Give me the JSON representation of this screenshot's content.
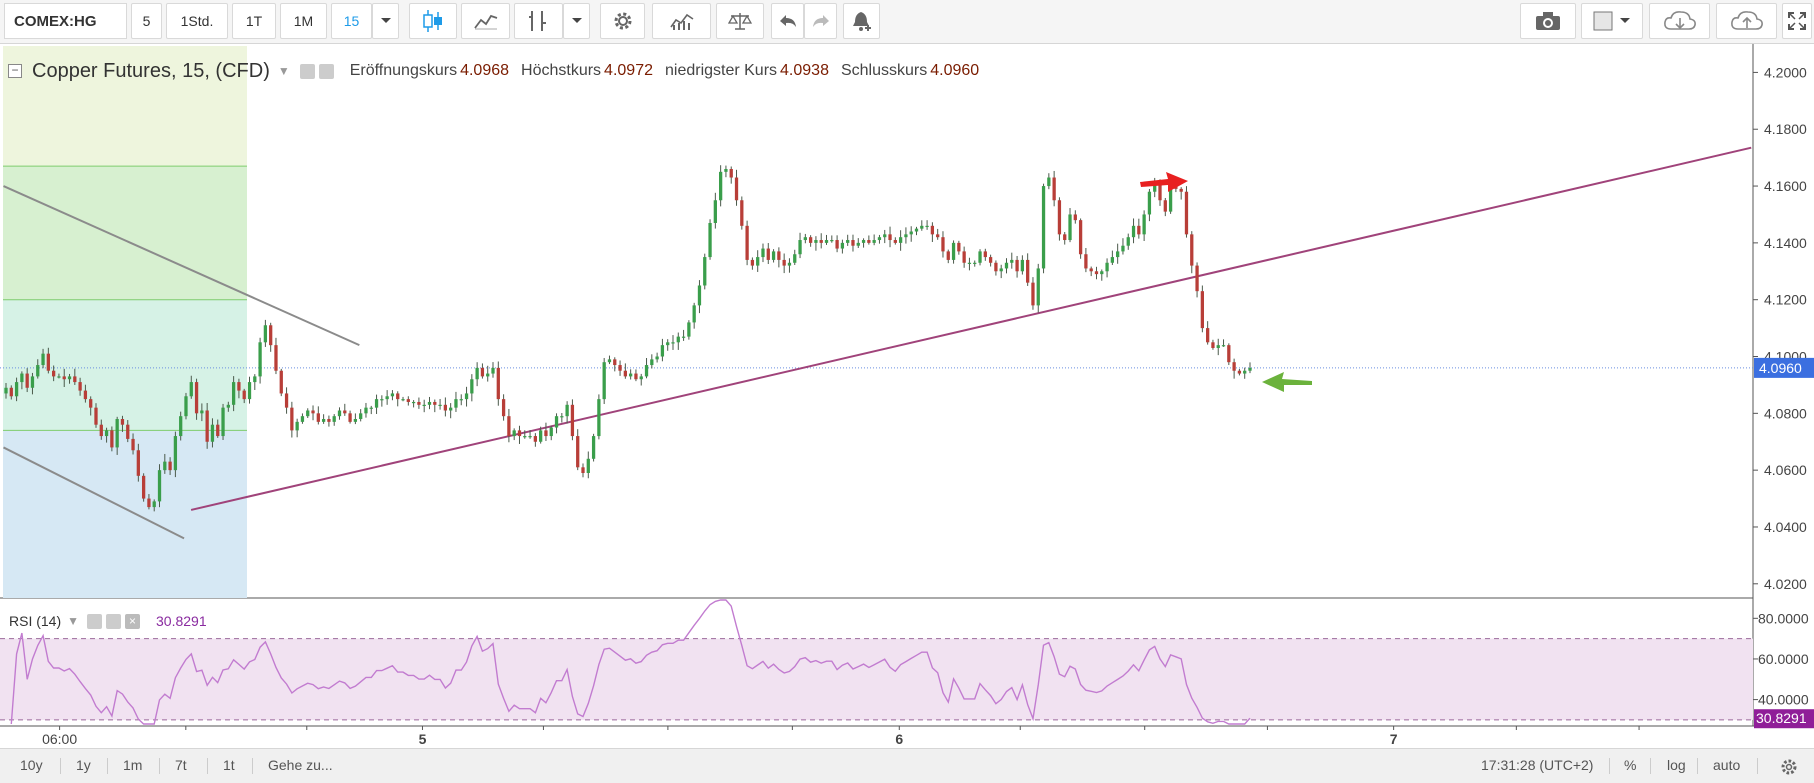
{
  "toolbar": {
    "symbol": "COMEX:HG",
    "intervals": [
      "5",
      "1Std.",
      "1T",
      "1M",
      "15"
    ],
    "active_interval": "15",
    "icons": [
      "candles-icon",
      "indicators-icon",
      "compare-icon",
      "settings-icon",
      "templates-icon",
      "scale-icon",
      "undo-icon",
      "redo-icon",
      "alert-icon",
      "camera-icon",
      "color-icon",
      "cloud-download-icon",
      "cloud-upload-icon",
      "fullscreen-icon"
    ]
  },
  "legend": {
    "title": "Copper Futures, 15, (CFD)",
    "open_label": "Eröffnungskurs",
    "open": "4.0968",
    "high_label": "Höchstkurs",
    "high": "4.0972",
    "low_label": "niedrigster Kurs",
    "low": "4.0938",
    "close_label": "Schlusskurs",
    "close": "4.0960"
  },
  "rsi": {
    "title": "RSI (14)",
    "value": "30.8291",
    "levels": [
      30,
      70
    ]
  },
  "bottom": {
    "ranges": [
      "10y",
      "1y",
      "1m",
      "7t",
      "1t"
    ],
    "goto": "Gehe zu...",
    "clock": "17:31:28 (UTC+2)",
    "percent": "%",
    "log": "log",
    "auto": "auto"
  },
  "colors": {
    "up": "#3a9e4b",
    "down": "#b83e38",
    "trendline": "#a0437a",
    "channel": "#8b8b8b",
    "last_price_bg": "#3b6fe0",
    "rsi_line": "#c27cd0",
    "rsi_band": "#f1e2f1",
    "rsi_last_bg": "#8f1e98",
    "arrow_red": "#e82020",
    "arrow_green": "#6bb23c"
  },
  "chart_data": {
    "type": "candlestick",
    "title": "Copper Futures, 15, (CFD)",
    "price_axis": {
      "ticks": [
        "4.2000",
        "4.1800",
        "4.1600",
        "4.1400",
        "4.1200",
        "4.1000",
        "4.0800",
        "4.0600",
        "4.0400",
        "4.0200"
      ],
      "ylim": [
        4.015,
        4.21
      ],
      "last_price": "4.0960"
    },
    "rsi_axis": {
      "ticks": [
        "80.0000",
        "60.0000",
        "40.0000"
      ],
      "ylim": [
        27,
        90
      ],
      "last": "30.8291"
    },
    "time_axis": {
      "labels": [
        {
          "label": "06:00",
          "x_frac": 0.034
        },
        {
          "label": "5",
          "x_frac": 0.241
        },
        {
          "label": "6",
          "x_frac": 0.513
        },
        {
          "label": "7",
          "x_frac": 0.795
        }
      ],
      "tick_fracs": [
        0.034,
        0.106,
        0.175,
        0.241,
        0.31,
        0.381,
        0.452,
        0.513,
        0.582,
        0.653,
        0.723,
        0.795,
        0.865,
        0.935
      ]
    },
    "fib_levels": [
      4.212,
      4.167,
      4.12,
      4.074
    ],
    "trendline": {
      "x_frac": [
        0.109,
        0.999
      ],
      "y": [
        4.046,
        4.1735
      ]
    },
    "channel_upper": {
      "x_frac": [
        0.002,
        0.205
      ],
      "y": [
        4.16,
        4.104
      ]
    },
    "channel_lower": {
      "x_frac": [
        0.002,
        0.105
      ],
      "y": [
        4.068,
        4.036
      ]
    },
    "closes": [
      4.089,
      4.086,
      4.091,
      4.094,
      4.089,
      4.093,
      4.097,
      4.101,
      4.095,
      4.093,
      4.093,
      4.092,
      4.093,
      4.091,
      4.088,
      4.085,
      4.082,
      4.076,
      4.072,
      4.074,
      4.068,
      4.078,
      4.076,
      4.071,
      4.067,
      4.058,
      4.05,
      4.047,
      4.049,
      4.06,
      4.063,
      4.06,
      4.072,
      4.079,
      4.086,
      4.091,
      4.08,
      4.081,
      4.07,
      4.076,
      4.072,
      4.082,
      4.083,
      4.091,
      4.088,
      4.085,
      4.091,
      4.093,
      4.105,
      4.111,
      4.104,
      4.095,
      4.087,
      4.082,
      4.074,
      4.077,
      4.079,
      4.081,
      4.08,
      4.077,
      4.078,
      4.077,
      4.079,
      4.081,
      4.08,
      4.077,
      4.078,
      4.08,
      4.082,
      4.082,
      4.085,
      4.085,
      4.086,
      4.087,
      4.085,
      4.085,
      4.084,
      4.084,
      4.083,
      4.083,
      4.084,
      4.083,
      4.083,
      4.081,
      4.082,
      4.085,
      4.085,
      4.087,
      4.092,
      4.096,
      4.093,
      4.094,
      4.096,
      4.085,
      4.079,
      4.072,
      4.074,
      4.072,
      4.072,
      4.072,
      4.07,
      4.074,
      4.072,
      4.075,
      4.079,
      4.079,
      4.083,
      4.072,
      4.061,
      4.059,
      4.064,
      4.072,
      4.085,
      4.098,
      4.099,
      4.097,
      4.095,
      4.093,
      4.094,
      4.092,
      4.093,
      4.097,
      4.099,
      4.1,
      4.104,
      4.105,
      4.105,
      4.107,
      4.107,
      4.112,
      4.118,
      4.125,
      4.135,
      4.147,
      4.155,
      4.165,
      4.166,
      4.163,
      4.155,
      4.146,
      4.134,
      4.132,
      4.135,
      4.138,
      4.134,
      4.137,
      4.134,
      4.132,
      4.133,
      4.136,
      4.141,
      4.142,
      4.14,
      4.141,
      4.14,
      4.141,
      4.141,
      4.138,
      4.14,
      4.141,
      4.139,
      4.14,
      4.141,
      4.14,
      4.141,
      4.142,
      4.143,
      4.141,
      4.14,
      4.142,
      4.143,
      4.144,
      4.145,
      4.146,
      4.146,
      4.143,
      4.142,
      4.137,
      4.134,
      4.14,
      4.137,
      4.133,
      4.133,
      4.133,
      4.137,
      4.135,
      4.133,
      4.13,
      4.131,
      4.133,
      4.134,
      4.13,
      4.134,
      4.126,
      4.118,
      4.131,
      4.16,
      4.163,
      4.155,
      4.143,
      4.141,
      4.15,
      4.148,
      4.136,
      4.131,
      4.13,
      4.129,
      4.13,
      4.133,
      4.135,
      4.137,
      4.139,
      4.142,
      4.146,
      4.143,
      4.15,
      4.158,
      4.161,
      4.155,
      4.151,
      4.16,
      4.159,
      4.158,
      4.143,
      4.132,
      4.123,
      4.11,
      4.105,
      4.103,
      4.104,
      4.104,
      4.098,
      4.095,
      4.094,
      4.095,
      4.096
    ]
  }
}
